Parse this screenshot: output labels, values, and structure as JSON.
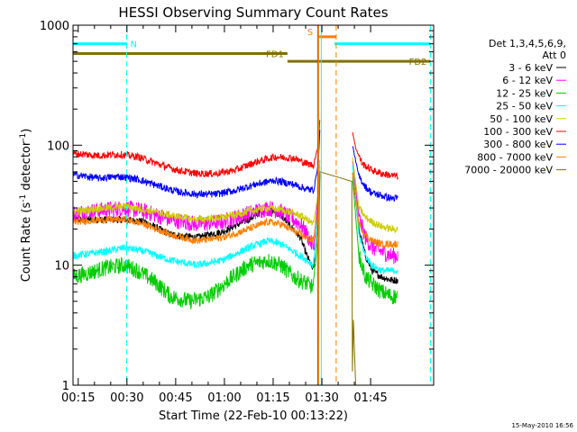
{
  "chart_data": {
    "type": "line",
    "title": "HESSI Observing Summary Count Rates",
    "xlabel": "Start Time (22-Feb-10 00:13:22)",
    "ylabel_main": "Count Rate (s",
    "ylabel_sup1": "-1",
    "ylabel_mid": " detector",
    "ylabel_sup2": "-1",
    "ylabel_end": ")",
    "x_unit": "minutes after 00:13:22",
    "xlim": [
      0,
      111
    ],
    "ylim": [
      1,
      1000
    ],
    "yscale": "log",
    "x_ticks": [
      {
        "value": 1.6,
        "label": "00:15"
      },
      {
        "value": 16.6,
        "label": "00:30"
      },
      {
        "value": 31.6,
        "label": "00:45"
      },
      {
        "value": 46.6,
        "label": "01:00"
      },
      {
        "value": 61.6,
        "label": "01:15"
      },
      {
        "value": 76.6,
        "label": "01:30"
      },
      {
        "value": 91.6,
        "label": "01:45"
      }
    ],
    "y_ticks": [
      {
        "value": 1,
        "label": "1"
      },
      {
        "value": 10,
        "label": "10"
      },
      {
        "value": 100,
        "label": "100"
      },
      {
        "value": 1000,
        "label": "1000"
      }
    ],
    "legend": {
      "position": "right",
      "header1": "Det 1,3,4,5,6,9,",
      "header2": "Att 0"
    },
    "series": [
      {
        "name": "3 - 6 keV",
        "color": "#000000",
        "x": [
          0,
          10,
          16,
          22,
          30,
          38,
          46,
          54,
          60,
          64,
          70,
          72,
          74,
          75.5,
          76,
          86,
          88,
          90,
          92,
          95,
          98,
          100
        ],
        "y": [
          24,
          24,
          24,
          23,
          18,
          17,
          19,
          24,
          30,
          26,
          17,
          12,
          9,
          30,
          60,
          60,
          20,
          12,
          9,
          8,
          7.5,
          7.5
        ]
      },
      {
        "name": "6 - 12 keV",
        "color": "#ff00ff",
        "x": [
          0,
          10,
          16,
          22,
          30,
          38,
          46,
          54,
          60,
          64,
          70,
          72,
          74,
          75.5,
          76,
          86,
          88,
          90,
          92,
          95,
          98,
          100
        ],
        "y": [
          27,
          29,
          30,
          28,
          24,
          22,
          23,
          27,
          30,
          28,
          22,
          18,
          14,
          40,
          70,
          75,
          25,
          17,
          14,
          13,
          12,
          12
        ]
      },
      {
        "name": "12 - 25 keV",
        "color": "#00cc00",
        "x": [
          0,
          4,
          10,
          16,
          20,
          26,
          30,
          36,
          42,
          48,
          54,
          60,
          64,
          68,
          72,
          74,
          75.5,
          76,
          86,
          88,
          90,
          92,
          95,
          98,
          100
        ],
        "y": [
          8,
          8.5,
          9.5,
          10,
          9,
          7,
          5.5,
          5,
          5.5,
          7.5,
          10,
          11,
          10,
          8,
          7,
          6.5,
          20,
          60,
          55,
          12,
          8,
          7,
          6,
          5.5,
          5.5
        ]
      },
      {
        "name": "25 - 50 keV",
        "color": "#00ffff",
        "x": [
          0,
          10,
          16,
          22,
          30,
          38,
          46,
          54,
          60,
          64,
          70,
          72,
          74,
          75.5,
          76,
          86,
          88,
          90,
          92,
          95,
          98,
          100
        ],
        "y": [
          12,
          13,
          14,
          13,
          11,
          10,
          11,
          14,
          16,
          15,
          12,
          11,
          10,
          30,
          70,
          70,
          18,
          12,
          10,
          9,
          9,
          9
        ]
      },
      {
        "name": "50 - 100 keV",
        "color": "#cccc00",
        "x": [
          0,
          10,
          16,
          22,
          30,
          38,
          46,
          54,
          60,
          64,
          70,
          72,
          74,
          75.5,
          76,
          86,
          88,
          90,
          92,
          95,
          98,
          100
        ],
        "y": [
          28,
          30,
          31,
          29,
          26,
          24,
          25,
          28,
          30,
          29,
          26,
          24,
          22,
          40,
          80,
          80,
          30,
          25,
          23,
          21,
          20,
          20
        ]
      },
      {
        "name": "100 - 300 keV",
        "color": "#ff0000",
        "x": [
          0,
          8,
          14,
          20,
          26,
          32,
          38,
          44,
          50,
          56,
          62,
          68,
          72,
          74,
          75.5,
          76,
          86,
          87,
          89,
          92,
          95,
          98,
          100
        ],
        "y": [
          85,
          82,
          84,
          80,
          70,
          62,
          58,
          58,
          62,
          72,
          80,
          78,
          70,
          68,
          100,
          170,
          130,
          95,
          70,
          62,
          58,
          56,
          55
        ]
      },
      {
        "name": "300 - 800 keV",
        "color": "#0000ff",
        "x": [
          0,
          8,
          14,
          20,
          26,
          32,
          38,
          44,
          50,
          56,
          62,
          68,
          72,
          74,
          75.5,
          76,
          86,
          88,
          90,
          92,
          95,
          98,
          100
        ],
        "y": [
          57,
          53,
          55,
          52,
          46,
          41,
          39,
          39,
          42,
          47,
          51,
          47,
          43,
          42,
          70,
          140,
          100,
          55,
          45,
          40,
          38,
          36,
          36
        ]
      },
      {
        "name": "800 - 7000 keV",
        "color": "#ff7f00",
        "x": [
          0,
          10,
          16,
          22,
          30,
          38,
          46,
          54,
          60,
          64,
          70,
          72,
          74,
          75.5,
          76,
          86,
          88,
          90,
          92,
          95,
          98,
          100
        ],
        "y": [
          23,
          24,
          24,
          22,
          18,
          16,
          17,
          20,
          23,
          22,
          18,
          17,
          16,
          30,
          60,
          60,
          22,
          18,
          16,
          15,
          15,
          15
        ]
      },
      {
        "name": "7000 - 20000 keV",
        "color": "#807000",
        "x": [
          75.4,
          75.6,
          75.8,
          76,
          85.8,
          86,
          86.3,
          86.6,
          87
        ],
        "y": [
          1,
          5,
          30,
          60,
          50,
          1.3,
          3.5,
          2,
          1
        ]
      }
    ],
    "bars": [
      {
        "label": "N",
        "color": "#00ffff",
        "x0": 0,
        "x1": 16.5,
        "y": 700
      },
      {
        "label": "",
        "color": "#00ffff",
        "x0": 80.5,
        "x1": 110,
        "y": 700
      },
      {
        "label": "S",
        "color": "#ff7f00",
        "x0": 75.5,
        "x1": 81,
        "y": 800
      },
      {
        "label": "FD1",
        "color": "#807000",
        "x0": 0,
        "x1": 66,
        "y": 580
      },
      {
        "label": "FD2",
        "color": "#807000",
        "x0": 66,
        "x1": 110,
        "y": 500
      }
    ],
    "vlines": [
      {
        "x": 0,
        "color": "#00ffff",
        "style": "solid"
      },
      {
        "x": 16.5,
        "color": "#00ffff",
        "style": "dashed"
      },
      {
        "x": 75.3,
        "color": "#807000",
        "style": "solid"
      },
      {
        "x": 75.6,
        "color": "#ff7f00",
        "style": "solid"
      },
      {
        "x": 76.4,
        "color": "#00ffff",
        "style": "solid"
      },
      {
        "x": 81,
        "color": "#ff7f00",
        "style": "dashed"
      },
      {
        "x": 110,
        "color": "#00ffff",
        "style": "dashed"
      }
    ]
  },
  "footer": {
    "timestamp": "15-May-2010 16:56"
  }
}
